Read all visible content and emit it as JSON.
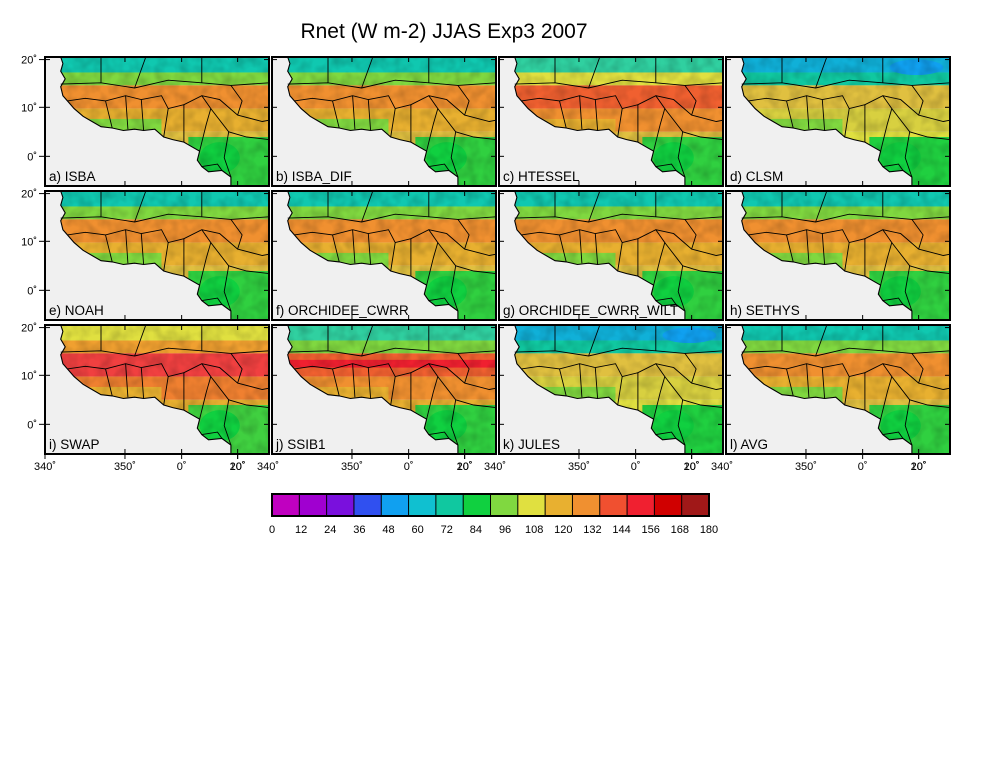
{
  "title": "Rnet (W m-2) JJAS Exp3 2007",
  "panels": [
    {
      "label": "a) ISBA",
      "variant": "base"
    },
    {
      "label": "b) ISBA_DIF",
      "variant": "base"
    },
    {
      "label": "c) HTESSEL",
      "variant": "hot"
    },
    {
      "label": "d) CLSM",
      "variant": "cool"
    },
    {
      "label": "e) NOAH",
      "variant": "base"
    },
    {
      "label": "f) ORCHIDEE_CWRR",
      "variant": "base"
    },
    {
      "label": "g) ORCHIDEE_CWRR_WILT",
      "variant": "base"
    },
    {
      "label": "h) SETHYS",
      "variant": "base"
    },
    {
      "label": "i) SWAP",
      "variant": "hotter"
    },
    {
      "label": "j) SSIB1",
      "variant": "band"
    },
    {
      "label": "k) JULES",
      "variant": "cool"
    },
    {
      "label": "l) AVG",
      "variant": "base"
    }
  ],
  "lat_ticks": [
    "20˚",
    "10˚",
    "0˚"
  ],
  "lon_ticks": [
    "340˚",
    "350˚",
    "0˚",
    "10˚",
    "20˚"
  ],
  "colorbar": {
    "tick_labels": [
      "0",
      "12",
      "24",
      "36",
      "48",
      "60",
      "72",
      "84",
      "96",
      "108",
      "120",
      "132",
      "144",
      "156",
      "168",
      "180"
    ],
    "colors": [
      "#c000c0",
      "#a000d0",
      "#7a10dd",
      "#3050f0",
      "#10a0f0",
      "#10c0d0",
      "#10c8a0",
      "#10d040",
      "#80d840",
      "#e0e040",
      "#e8b030",
      "#f09030",
      "#f05030",
      "#f02030",
      "#d00000",
      "#a01818"
    ]
  },
  "colors": {
    "ocean": "#f0f0f0",
    "frame": "#000000"
  }
}
